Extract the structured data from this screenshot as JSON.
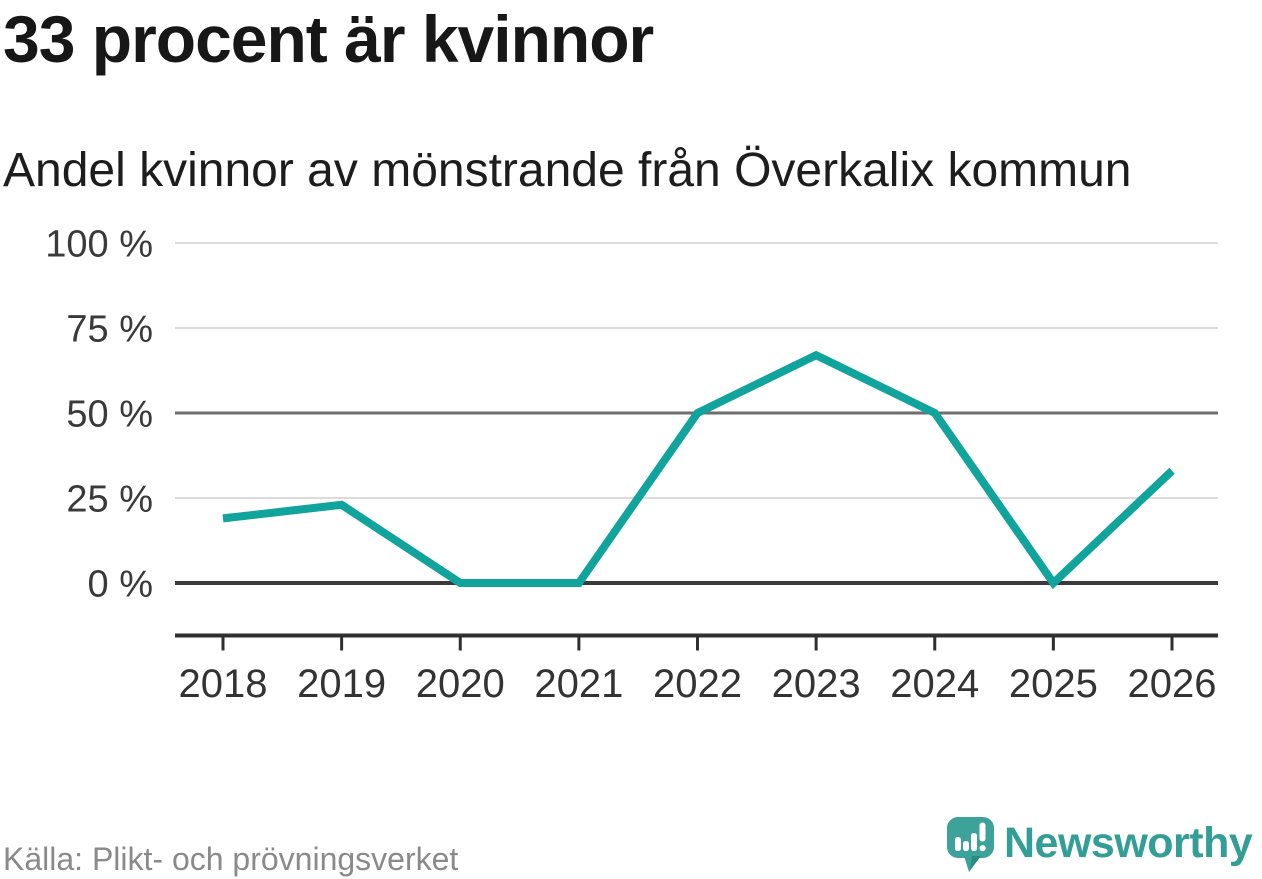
{
  "header": {
    "title": "33 procent är kvinnor",
    "subtitle": "Andel kvinnor av mönstrande från Överkalix kommun"
  },
  "chart_data": {
    "type": "line",
    "categories": [
      "2018",
      "2019",
      "2020",
      "2021",
      "2022",
      "2023",
      "2024",
      "2025",
      "2026"
    ],
    "values": [
      19,
      23,
      0,
      0,
      50,
      67,
      50,
      0,
      33
    ],
    "series_label": "Andel kvinnor av mönstrande",
    "title": "33 procent är kvinnor",
    "subtitle": "Andel kvinnor av mönstrande från Överkalix kommun",
    "xlabel": "",
    "ylabel": "",
    "ylim": [
      0,
      100
    ],
    "yticks": [
      {
        "value": 100,
        "label": "100 %",
        "emphasis": "none"
      },
      {
        "value": 75,
        "label": "75 %",
        "emphasis": "none"
      },
      {
        "value": 50,
        "label": "50 %",
        "emphasis": "mid"
      },
      {
        "value": 25,
        "label": "25 %",
        "emphasis": "none"
      },
      {
        "value": 0,
        "label": "0 %",
        "emphasis": "zero"
      }
    ],
    "grid": "horizontal-only",
    "legend": "none"
  },
  "footer": {
    "source": "Källa: Plikt- och prövningsverket",
    "brand_name": "Newsworthy"
  },
  "colors": {
    "line": "#10a49c",
    "grid": "#dcdcdc",
    "grid_mid": "#6e6e6e",
    "grid_zero": "#3a3a3a",
    "axis": "#2f2f2f",
    "tick_text": "#3a3a3a",
    "brand_teal": "#339e96",
    "brand_icon": "#3ca29a",
    "brand_icon_shade": "#2b8c84"
  }
}
